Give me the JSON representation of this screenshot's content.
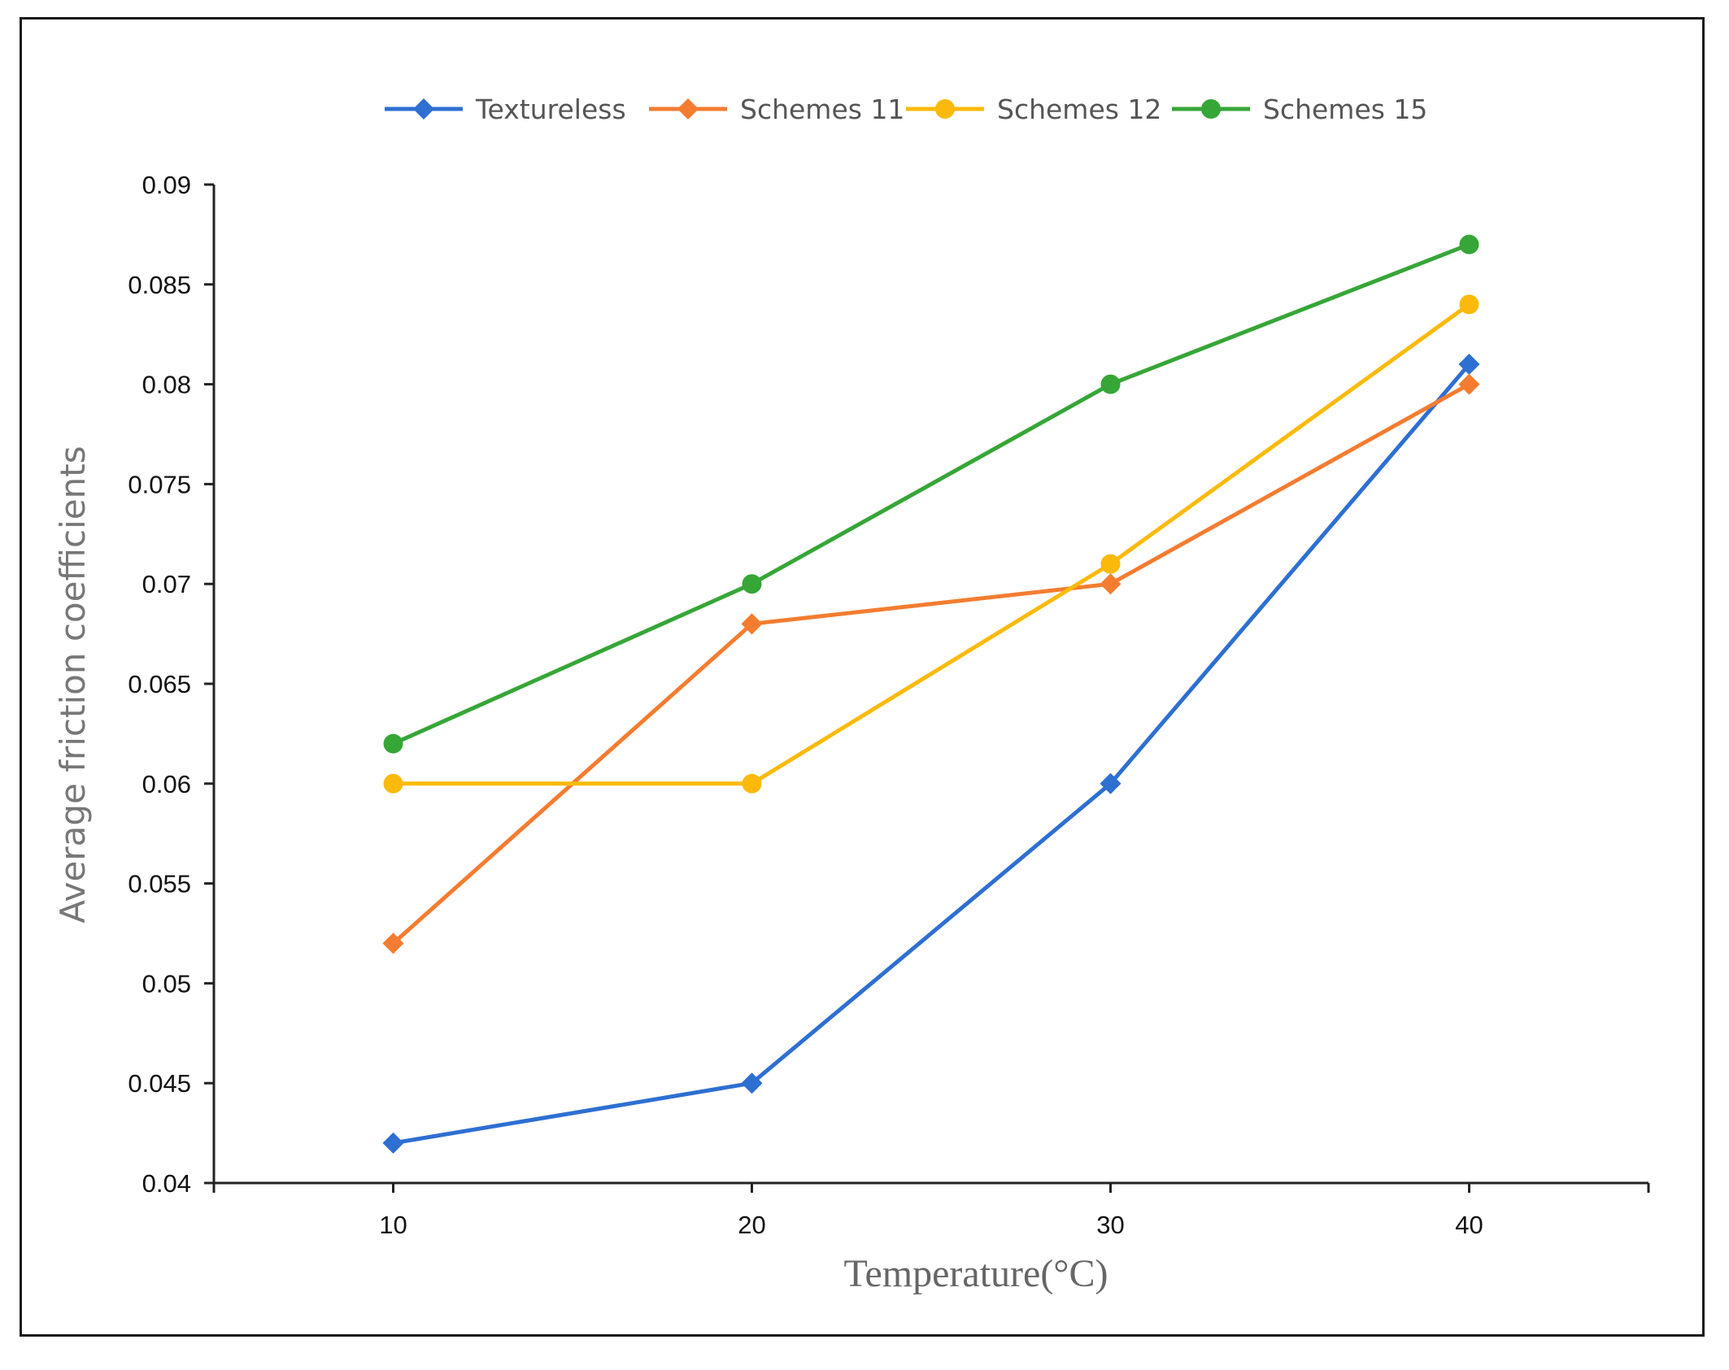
{
  "chart_data": {
    "type": "line",
    "title": "",
    "xlabel": "Temperature(°C)",
    "ylabel": "Average friction coefficients",
    "x": [
      10,
      20,
      30,
      40
    ],
    "x_tick_labels": [
      "10",
      "20",
      "30",
      "40"
    ],
    "xlim": [
      5,
      45
    ],
    "ylim": [
      0.04,
      0.09
    ],
    "y_ticks": [
      0.04,
      0.045,
      0.05,
      0.055,
      0.06,
      0.065,
      0.07,
      0.075,
      0.08,
      0.085,
      0.09
    ],
    "y_tick_labels": [
      "0.04",
      "0.045",
      "0.05",
      "0.055",
      "0.06",
      "0.065",
      "0.07",
      "0.075",
      "0.08",
      "0.085",
      "0.09"
    ],
    "grid": false,
    "legend_position": "top",
    "series": [
      {
        "name": "Textureless",
        "color": "#2E6FD2",
        "marker": "diamond",
        "values": [
          0.042,
          0.045,
          0.06,
          0.081
        ]
      },
      {
        "name": "Schemes 11",
        "color": "#F47C30",
        "marker": "diamond",
        "values": [
          0.052,
          0.068,
          0.07,
          0.08
        ]
      },
      {
        "name": "Schemes 12",
        "color": "#FBBA0B",
        "marker": "circle",
        "values": [
          0.06,
          0.06,
          0.071,
          0.084
        ]
      },
      {
        "name": "Schemes 15",
        "color": "#36A637",
        "marker": "circle",
        "values": [
          0.062,
          0.07,
          0.08,
          0.087
        ]
      }
    ]
  }
}
